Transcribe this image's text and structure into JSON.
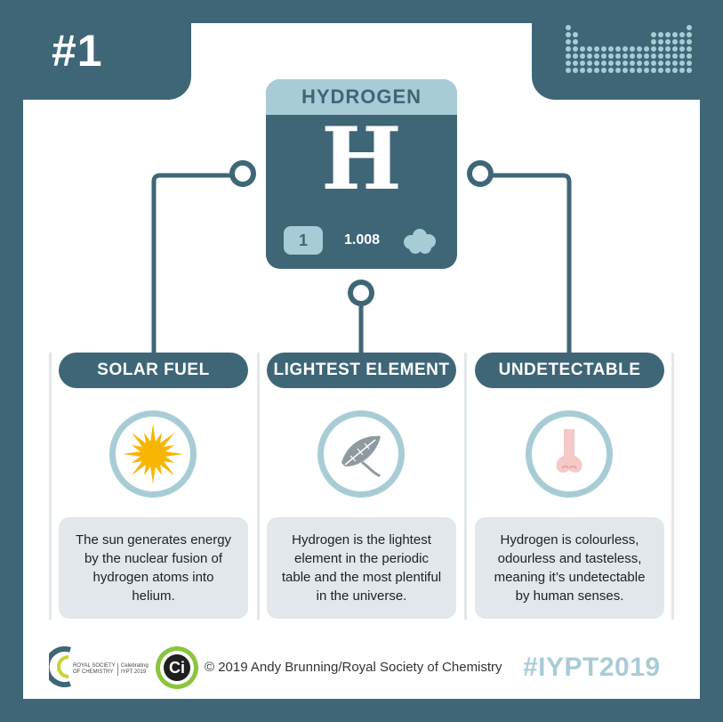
{
  "rank": "#1",
  "element": {
    "name": "HYDROGEN",
    "symbol": "H",
    "atomic_number": "1",
    "atomic_mass": "1.008",
    "state_icon": "cloud-icon"
  },
  "facts": [
    {
      "title": "SOLAR FUEL",
      "icon": "sun-icon",
      "text": "The sun generates energy by the nuclear fusion of hydrogen atoms into helium."
    },
    {
      "title": "LIGHTEST ELEMENT",
      "icon": "feather-icon",
      "text": "Hydrogen is the lightest element in the periodic table and the most plentiful in the universe."
    },
    {
      "title": "UNDETECTABLE",
      "icon": "nose-icon",
      "text": "Hydrogen is colourless, odourless and tasteless, meaning it’s undetectable by human senses."
    }
  ],
  "footer": {
    "rsc_logo_text": [
      "ROYAL SOCIETY",
      "OF CHEMISTRY"
    ],
    "iypt_small": [
      "Celebrating",
      "IYPT 2019"
    ],
    "ci_logo": "Ci",
    "copyright": "© 2019 Andy Brunning/Royal Society of Chemistry",
    "hashtag": "#IYPT2019"
  },
  "colors": {
    "dark_teal": "#3e6677",
    "light_blue": "#a8ccd6",
    "panel_grey": "#e1e7ea",
    "sun_yellow": "#f7b500",
    "nose_pink": "#f4c9c7",
    "ci_green": "#8bc540"
  }
}
